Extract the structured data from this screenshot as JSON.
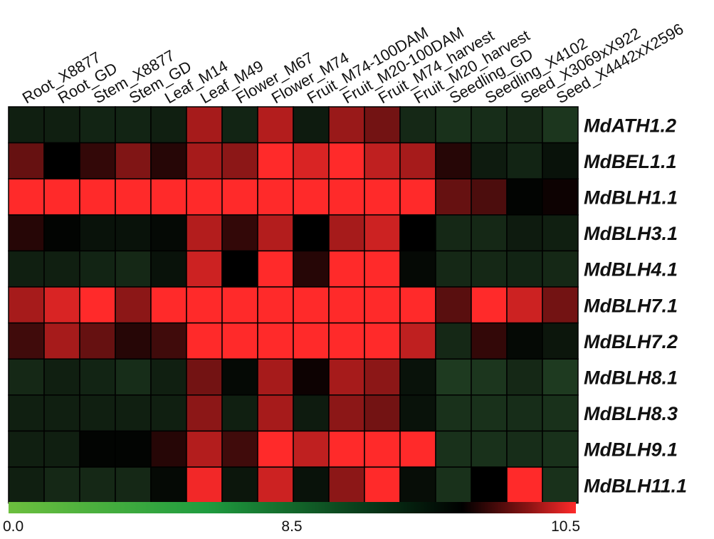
{
  "chart_data": {
    "type": "heatmap",
    "title": "",
    "xlabel": "",
    "ylabel": "",
    "columns": [
      "Root_X8877",
      "Root_GD",
      "Stem_X8877",
      "Stem_GD",
      "Leaf_M14",
      "Leaf_M49",
      "Flower_M67",
      "Flower_M74",
      "Fruit_M74-100DAM",
      "Fruit_M20-100DAM",
      "Fruit_M74_harvest",
      "Fruit_M20_harvest",
      "Seedling_GD",
      "Seedling_X4102",
      "Seed_X3069xX922",
      "Seed_X4442xX2596"
    ],
    "rows": [
      "MdATH1.2",
      "MdBEL1.1",
      "MdBLH1.1",
      "MdBLH3.1",
      "MdBLH4.1",
      "MdBLH7.1",
      "MdBLH7.2",
      "MdBLH8.1",
      "MdBLH8.3",
      "MdBLH9.1",
      "MdBLH11.1"
    ],
    "values": [
      [
        7.8,
        7.8,
        7.7,
        7.7,
        7.8,
        9.8,
        7.7,
        9.9,
        7.9,
        9.7,
        9.4,
        7.6,
        7.4,
        7.5,
        7.6,
        7.3
      ],
      [
        9.3,
        8.5,
        8.9,
        9.5,
        8.8,
        9.8,
        9.6,
        10.5,
        10.2,
        10.5,
        10.0,
        9.8,
        8.8,
        7.9,
        7.7,
        8.1
      ],
      [
        10.5,
        10.5,
        10.5,
        10.5,
        10.5,
        10.5,
        10.5,
        10.5,
        10.5,
        10.5,
        10.5,
        10.5,
        9.3,
        9.1,
        8.4,
        8.6
      ],
      [
        8.8,
        8.4,
        8.1,
        8.1,
        8.3,
        9.9,
        8.9,
        9.9,
        8.5,
        9.8,
        10.1,
        8.5,
        7.6,
        7.6,
        7.9,
        7.8
      ],
      [
        7.8,
        7.8,
        7.7,
        7.6,
        8.1,
        10.1,
        8.5,
        10.5,
        8.8,
        10.5,
        10.5,
        8.3,
        7.6,
        7.6,
        7.7,
        7.6
      ],
      [
        9.8,
        10.2,
        10.5,
        9.6,
        10.5,
        10.5,
        10.5,
        10.5,
        10.5,
        10.5,
        10.5,
        10.5,
        9.2,
        10.5,
        10.1,
        9.4
      ],
      [
        9.0,
        9.8,
        9.3,
        8.8,
        9.0,
        10.5,
        10.5,
        10.5,
        10.5,
        10.5,
        10.5,
        10.0,
        7.6,
        8.9,
        8.3,
        8.0
      ],
      [
        7.6,
        7.8,
        7.7,
        7.5,
        7.8,
        9.4,
        8.3,
        9.8,
        8.6,
        9.8,
        9.6,
        8.1,
        7.2,
        7.3,
        7.6,
        7.2
      ],
      [
        7.8,
        7.8,
        7.8,
        7.8,
        7.8,
        9.6,
        7.8,
        9.8,
        7.9,
        9.6,
        9.4,
        8.1,
        7.4,
        7.4,
        7.5,
        7.4
      ],
      [
        7.8,
        7.8,
        8.4,
        8.4,
        8.8,
        9.9,
        9.0,
        10.5,
        10.0,
        10.5,
        10.5,
        10.5,
        7.4,
        7.4,
        7.5,
        7.4
      ],
      [
        7.8,
        7.6,
        7.6,
        7.6,
        8.3,
        10.4,
        8.0,
        10.1,
        8.1,
        9.6,
        10.5,
        8.2,
        7.4,
        8.5,
        10.5,
        7.4
      ]
    ],
    "colorbar": {
      "min": 0.0,
      "mid": 8.5,
      "max": 10.5,
      "tick_labels": [
        "0.0",
        "8.5",
        "10.5"
      ],
      "colors": [
        "#6cbf3e",
        "#000000",
        "#ff2a2a"
      ]
    },
    "grid": true,
    "legend": "bottom"
  }
}
